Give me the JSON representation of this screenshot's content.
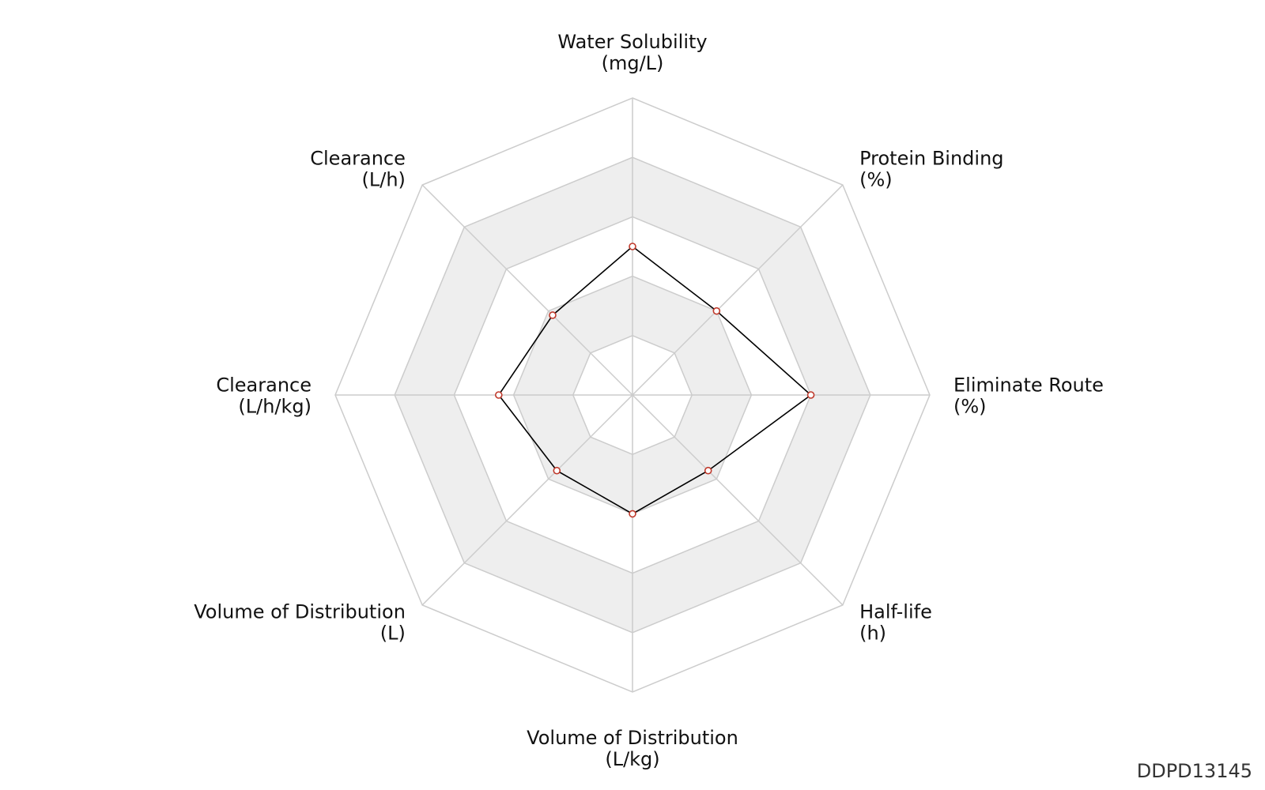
{
  "chart_data": {
    "type": "radar",
    "axes": [
      {
        "name": "Water Solubility",
        "unit": "(mg/L)"
      },
      {
        "name": "Protein Binding",
        "unit": "(%)"
      },
      {
        "name": "Eliminate Route",
        "unit": "(%)"
      },
      {
        "name": "Half-life",
        "unit": "(h)"
      },
      {
        "name": "Volume of Distribution",
        "unit": "(L/kg)"
      },
      {
        "name": "Volume of Distribution",
        "unit": "(L)"
      },
      {
        "name": "Clearance",
        "unit": "(L/h/kg)"
      },
      {
        "name": "Clearance",
        "unit": "(L/h)"
      }
    ],
    "rings": 5,
    "range": [
      0,
      5
    ],
    "series": [
      {
        "values": [
          2.5,
          2.0,
          3.0,
          1.8,
          2.0,
          1.8,
          2.25,
          1.9
        ]
      }
    ],
    "colors": {
      "line": "#000000",
      "marker_edge": "#c0392b",
      "marker_fill": "#ffffff",
      "grid": "#cccccc",
      "band": "#eeeeee"
    }
  },
  "footer": {
    "id_label": "DDPD13145"
  }
}
